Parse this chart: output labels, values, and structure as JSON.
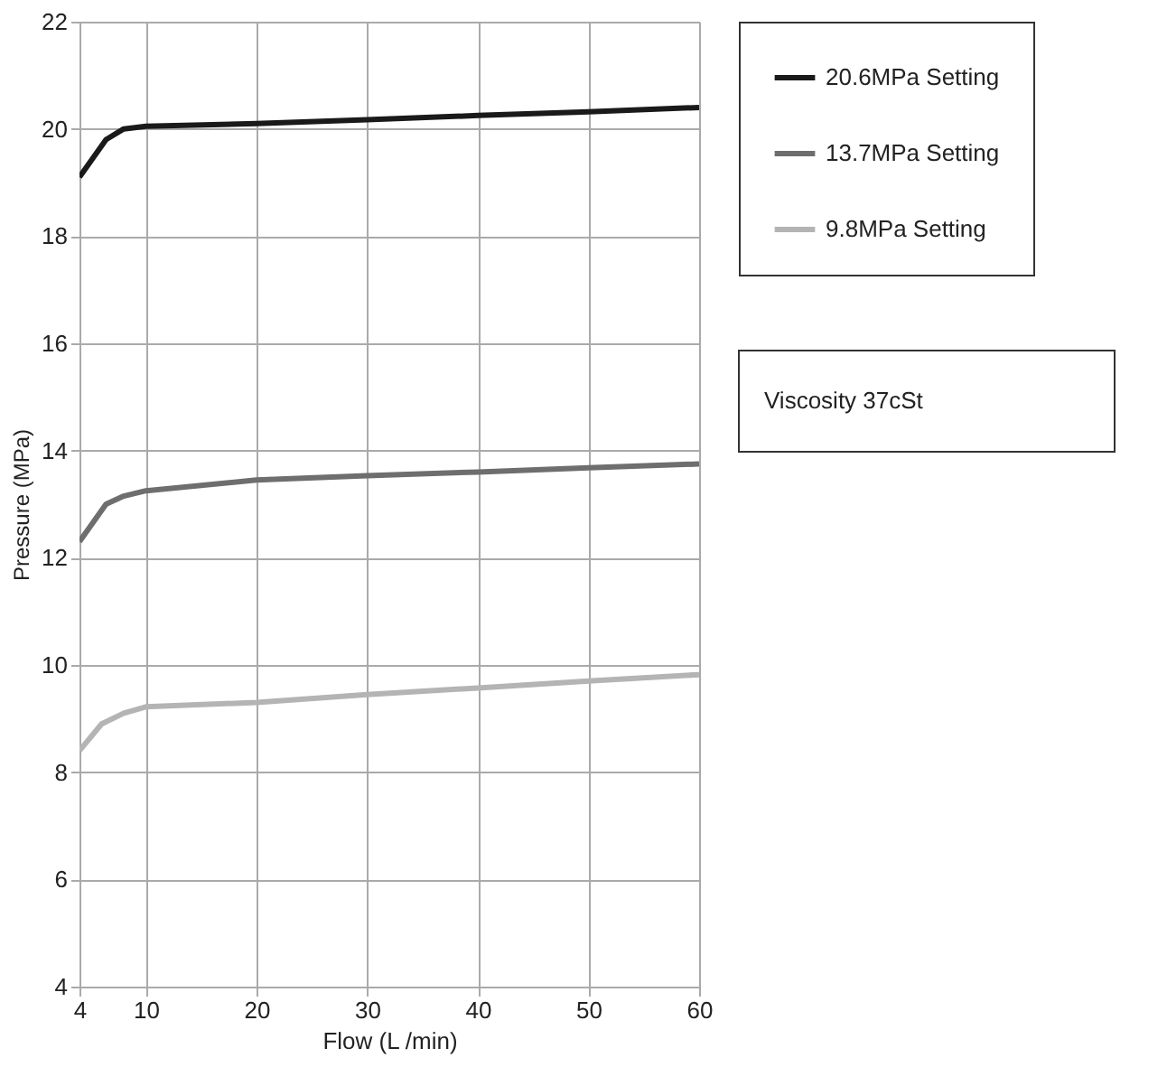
{
  "chart_data": {
    "type": "line",
    "xlabel": "Flow (L /min)",
    "ylabel": "Pressure  (MPa)",
    "xlim": [
      4,
      60
    ],
    "xticks": [
      4,
      10,
      20,
      30,
      40,
      50,
      60
    ],
    "ylim": [
      4,
      22
    ],
    "yticks": [
      4,
      6,
      8,
      10,
      12,
      14,
      16,
      18,
      20,
      22
    ],
    "grid": true,
    "legend": "top right",
    "marker": "none",
    "line_style": "solid",
    "annotations": [
      "Viscosity 37cSt"
    ],
    "series": [
      {
        "name": "20.6MPa Setting",
        "color": "#1a1a1a",
        "x": [
          4,
          6.4,
          8,
          10,
          20,
          30,
          40,
          50,
          60
        ],
        "values": [
          19.1,
          19.8,
          20.0,
          20.05,
          20.1,
          20.17,
          20.25,
          20.32,
          20.4
        ]
      },
      {
        "name": "13.7MPa Setting",
        "color": "#6e6e6e",
        "x": [
          4,
          6.4,
          8,
          10,
          20,
          30,
          40,
          50,
          60
        ],
        "values": [
          12.3,
          13.0,
          13.15,
          13.25,
          13.45,
          13.53,
          13.6,
          13.68,
          13.75
        ]
      },
      {
        "name": "9.8MPa Setting",
        "color": "#b4b4b4",
        "x": [
          4,
          6,
          8,
          10,
          20,
          30,
          40,
          50,
          60
        ],
        "values": [
          8.4,
          8.9,
          9.1,
          9.22,
          9.3,
          9.45,
          9.57,
          9.7,
          9.82
        ]
      }
    ]
  }
}
